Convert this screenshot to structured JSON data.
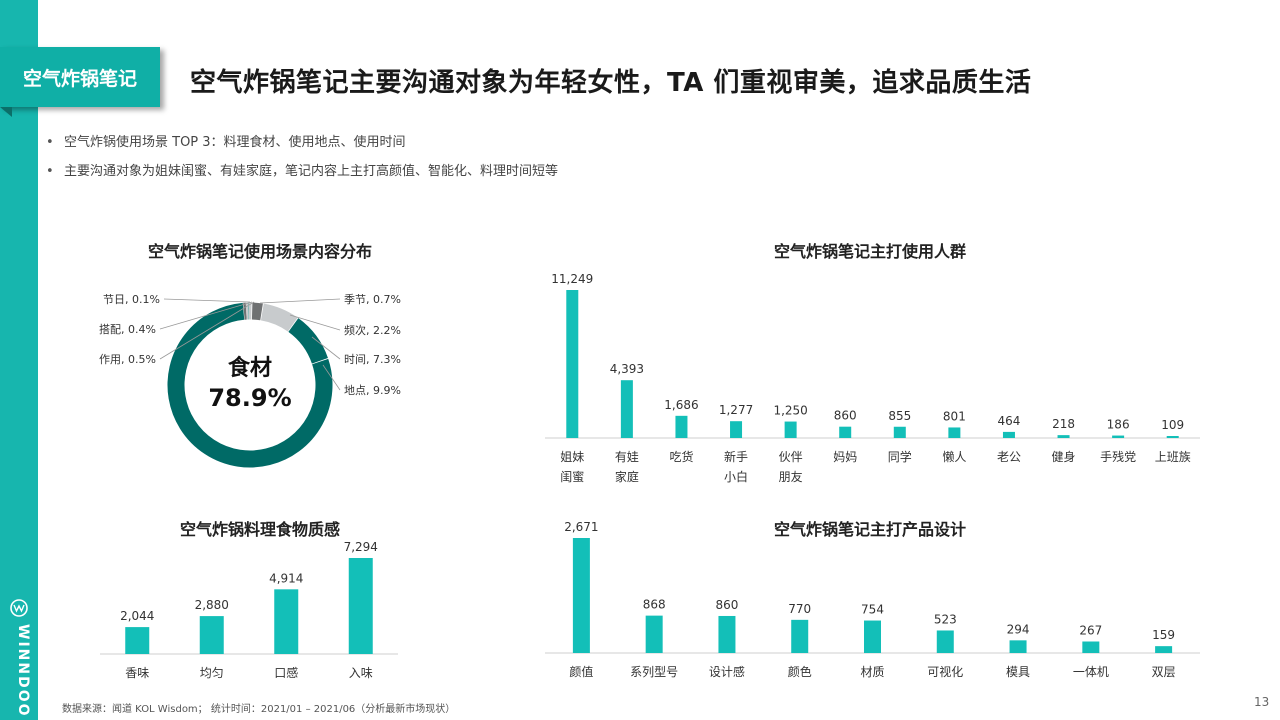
{
  "header": {
    "tag": "空气炸锅笔记",
    "title": "空气炸锅笔记主要沟通对象为年轻女性，TA 们重视审美，追求品质生活"
  },
  "bullets": [
    "空气炸锅使用场景 TOP 3：料理食材、使用地点、使用时间",
    "主要沟通对象为姐妹闺蜜、有娃家庭，笔记内容上主打高颜值、智能化、料理时间短等"
  ],
  "colors": {
    "accent": "#17b6ae",
    "bar": "#13bfb8",
    "donut_main": "#006a66",
    "donut_light": "#c8cbcd",
    "donut_dark": "#6f7172"
  },
  "brand": {
    "logo_icon": "winndoo-logo-icon",
    "logo_text": "WINNDOO"
  },
  "chart_data": [
    {
      "type": "pie",
      "title": "空气炸锅笔记使用场景内容分布",
      "center_label": {
        "name": "食材",
        "value": "78.9%"
      },
      "slices": [
        {
          "name": "食材",
          "value": 78.9,
          "label": ""
        },
        {
          "name": "节日",
          "value": 0.1,
          "label": "节日, 0.1%"
        },
        {
          "name": "搭配",
          "value": 0.4,
          "label": "搭配, 0.4%"
        },
        {
          "name": "作用",
          "value": 0.5,
          "label": "作用, 0.5%"
        },
        {
          "name": "季节",
          "value": 0.7,
          "label": "季节, 0.7%"
        },
        {
          "name": "频次",
          "value": 2.2,
          "label": "频次, 2.2%"
        },
        {
          "name": "时间",
          "value": 7.3,
          "label": "时间, 7.3%"
        },
        {
          "name": "地点",
          "value": 9.9,
          "label": "地点, 9.9%"
        }
      ]
    },
    {
      "type": "bar",
      "title": "空气炸锅笔记主打使用人群",
      "categories": [
        "姐妹\n闺蜜",
        "有娃\n家庭",
        "吃货",
        "新手\n小白",
        "伙伴\n朋友",
        "妈妈",
        "同学",
        "懒人",
        "老公",
        "健身",
        "手残党",
        "上班族"
      ],
      "values": [
        11249,
        4393,
        1686,
        1277,
        1250,
        860,
        855,
        801,
        464,
        218,
        186,
        109
      ],
      "value_labels": [
        "11,249",
        "4,393",
        "1,686",
        "1,277",
        "1,250",
        "860",
        "855",
        "801",
        "464",
        "218",
        "186",
        "109"
      ]
    },
    {
      "type": "bar",
      "title": "空气炸锅料理食物质感",
      "categories": [
        "香味",
        "均匀",
        "口感",
        "入味"
      ],
      "values": [
        2044,
        2880,
        4914,
        7294
      ],
      "value_labels": [
        "2,044",
        "2,880",
        "4,914",
        "7,294"
      ]
    },
    {
      "type": "bar",
      "title": "空气炸锅笔记主打产品设计",
      "categories": [
        "颜值",
        "系列型号",
        "设计感",
        "颜色",
        "材质",
        "可视化",
        "模具",
        "一体机",
        "双层"
      ],
      "values": [
        2671,
        868,
        860,
        770,
        754,
        523,
        294,
        267,
        159
      ],
      "value_labels": [
        "2,671",
        "868",
        "860",
        "770",
        "754",
        "523",
        "294",
        "267",
        "159"
      ]
    }
  ],
  "footer": {
    "source": "数据来源：闻道 KOL Wisdom； 统计时间：2021/01 – 2021/06（分析最新市场现状）",
    "page": "13"
  }
}
